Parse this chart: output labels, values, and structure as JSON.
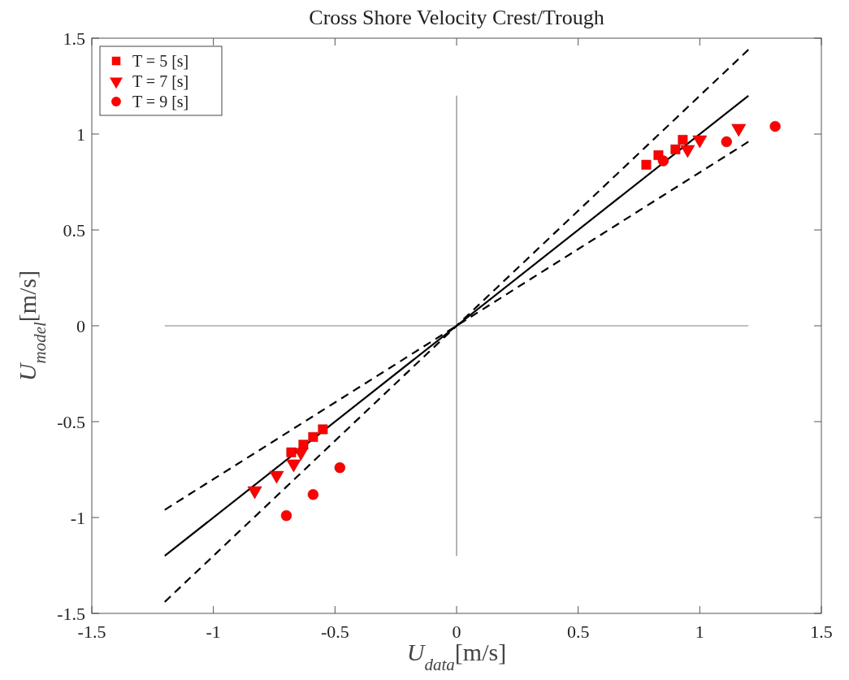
{
  "chart_data": {
    "type": "scatter",
    "title": "Cross Shore Velocity Crest/Trough",
    "xlabel": "U$_{data}$[m/s]",
    "ylabel": "U$_{model}$[m/s]",
    "xlim": [
      -1.5,
      1.5
    ],
    "ylim": [
      -1.5,
      1.5
    ],
    "xticks": [
      -1.5,
      -1,
      -0.5,
      0,
      0.5,
      1,
      1.5
    ],
    "yticks": [
      -1.5,
      -1,
      -0.5,
      0,
      0.5,
      1,
      1.5
    ],
    "grid": false,
    "legend": "top left",
    "series": [
      {
        "type": "line",
        "color": "#808080",
        "line_style": "solid",
        "x": [
          -1.2,
          1.2
        ],
        "values": [
          0,
          0
        ]
      },
      {
        "type": "line",
        "color": "#808080",
        "line_style": "solid",
        "x": [
          0,
          0
        ],
        "values": [
          -1.2,
          1.2
        ]
      },
      {
        "type": "line",
        "color": "#000000",
        "line_style": "solid",
        "x": [
          -1.2,
          1.2
        ],
        "values": [
          -1.2,
          1.2
        ]
      },
      {
        "type": "line",
        "color": "#000000",
        "line_style": "dashed",
        "x": [
          -1.2,
          1.2
        ],
        "values": [
          -1.44,
          1.44
        ]
      },
      {
        "type": "line",
        "color": "#000000",
        "line_style": "dashed",
        "x": [
          -1.2,
          1.2
        ],
        "values": [
          -0.96,
          0.96
        ]
      },
      {
        "name": "T = 5 [s]",
        "marker": "square",
        "color": "#ff0000",
        "x": [
          0.78,
          0.83,
          0.9,
          0.93,
          -0.55,
          -0.59,
          -0.63,
          -0.68
        ],
        "values": [
          0.84,
          0.89,
          0.92,
          0.97,
          -0.54,
          -0.58,
          -0.62,
          -0.66
        ]
      },
      {
        "name": "T = 7 [s]",
        "marker": "triangle",
        "color": "#ff0000",
        "x": [
          0.95,
          1.0,
          1.16,
          -0.64,
          -0.67,
          -0.74,
          -0.83
        ],
        "values": [
          0.92,
          0.97,
          1.03,
          -0.66,
          -0.72,
          -0.78,
          -0.86
        ]
      },
      {
        "name": "T = 9 [s]",
        "marker": "circle",
        "color": "#ff0000",
        "x": [
          0.85,
          1.11,
          1.31,
          -0.48,
          -0.59,
          -0.7
        ],
        "values": [
          0.86,
          0.96,
          1.04,
          -0.74,
          -0.88,
          -0.99
        ]
      }
    ]
  }
}
